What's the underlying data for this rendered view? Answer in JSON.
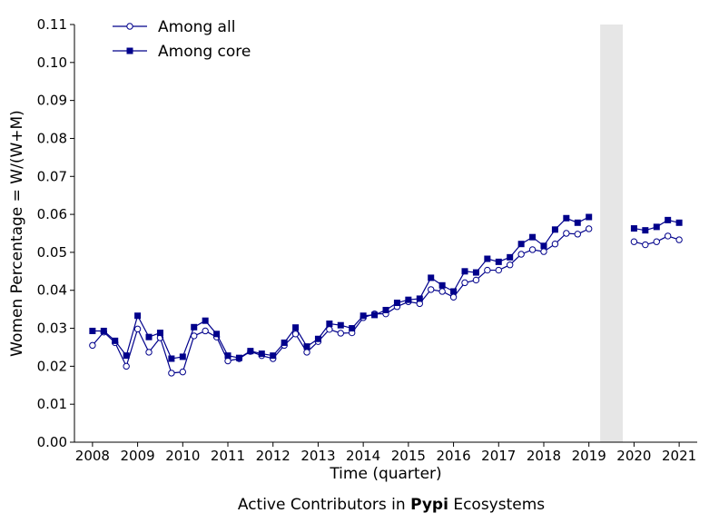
{
  "chart_data": {
    "type": "line",
    "xlabel": "Time (quarter)",
    "ylabel": "Women Percentage = W/(W+M)",
    "ylim": [
      0,
      0.11
    ],
    "xlim": [
      2007.6,
      2021.4
    ],
    "xticks": [
      2008,
      2009,
      2010,
      2011,
      2012,
      2013,
      2014,
      2015,
      2016,
      2017,
      2018,
      2019,
      2020,
      2021
    ],
    "yticks": [
      "0.00",
      "0.01",
      "0.02",
      "0.03",
      "0.04",
      "0.05",
      "0.06",
      "0.07",
      "0.08",
      "0.09",
      "0.10",
      "0.11"
    ],
    "grid": false,
    "legend_position": "top-left",
    "shaded_region": {
      "x_start": 2019.25,
      "x_end": 2019.75,
      "color": "#e6e6e6"
    },
    "series": [
      {
        "name": "Among all",
        "marker": "circle-open",
        "color": "#00008b",
        "segments": [
          {
            "x": [
              2008.0,
              2008.25,
              2008.5,
              2008.75,
              2009.0,
              2009.25,
              2009.5,
              2009.75,
              2010.0,
              2010.25,
              2010.5,
              2010.75,
              2011.0,
              2011.25,
              2011.5,
              2011.75,
              2012.0,
              2012.25,
              2012.5,
              2012.75,
              2013.0,
              2013.25,
              2013.5,
              2013.75,
              2014.0,
              2014.25,
              2014.5,
              2014.75,
              2015.0,
              2015.25,
              2015.5,
              2015.75,
              2016.0,
              2016.25,
              2016.5,
              2016.75,
              2017.0,
              2017.25,
              2017.5,
              2017.75,
              2018.0,
              2018.25,
              2018.5,
              2018.75,
              2019.0
            ],
            "y": [
              0.0255,
              0.029,
              0.0262,
              0.02,
              0.0298,
              0.0237,
              0.0275,
              0.0182,
              0.0185,
              0.028,
              0.0293,
              0.0277,
              0.0214,
              0.022,
              0.0239,
              0.0228,
              0.022,
              0.0255,
              0.0285,
              0.0237,
              0.0265,
              0.0297,
              0.0287,
              0.0288,
              0.0328,
              0.0338,
              0.0338,
              0.0357,
              0.037,
              0.0365,
              0.0402,
              0.0397,
              0.0382,
              0.042,
              0.0427,
              0.0453,
              0.0453,
              0.0467,
              0.0495,
              0.0507,
              0.0502,
              0.0522,
              0.055,
              0.0548,
              0.0562
            ]
          },
          {
            "x": [
              2020.0,
              2020.25,
              2020.5,
              2020.75,
              2021.0
            ],
            "y": [
              0.0528,
              0.052,
              0.0528,
              0.0543,
              0.0533
            ]
          }
        ]
      },
      {
        "name": "Among core",
        "marker": "square-filled",
        "color": "#00008b",
        "segments": [
          {
            "x": [
              2008.0,
              2008.25,
              2008.5,
              2008.75,
              2009.0,
              2009.25,
              2009.5,
              2009.75,
              2010.0,
              2010.25,
              2010.5,
              2010.75,
              2011.0,
              2011.25,
              2011.5,
              2011.75,
              2012.0,
              2012.25,
              2012.5,
              2012.75,
              2013.0,
              2013.25,
              2013.5,
              2013.75,
              2014.0,
              2014.25,
              2014.5,
              2014.75,
              2015.0,
              2015.25,
              2015.5,
              2015.75,
              2016.0,
              2016.25,
              2016.5,
              2016.75,
              2017.0,
              2017.25,
              2017.5,
              2017.75,
              2018.0,
              2018.25,
              2018.5,
              2018.75,
              2019.0
            ],
            "y": [
              0.0293,
              0.0293,
              0.0267,
              0.0228,
              0.0333,
              0.0277,
              0.0288,
              0.022,
              0.0225,
              0.0303,
              0.032,
              0.0285,
              0.0228,
              0.0222,
              0.024,
              0.0233,
              0.0228,
              0.0262,
              0.0302,
              0.0252,
              0.0272,
              0.0312,
              0.0308,
              0.03,
              0.0333,
              0.0335,
              0.0348,
              0.0367,
              0.0375,
              0.0378,
              0.0433,
              0.0413,
              0.0397,
              0.045,
              0.0447,
              0.0483,
              0.0475,
              0.0487,
              0.0522,
              0.054,
              0.0517,
              0.056,
              0.059,
              0.0578,
              0.0593
            ]
          },
          {
            "x": [
              2020.0,
              2020.25,
              2020.5,
              2020.75,
              2021.0
            ],
            "y": [
              0.0563,
              0.0558,
              0.0567,
              0.0585,
              0.0578
            ]
          }
        ]
      }
    ]
  },
  "caption": {
    "prefix": "Active Contributors in ",
    "emphasis": "Pypi",
    "suffix": " Ecosystems"
  }
}
